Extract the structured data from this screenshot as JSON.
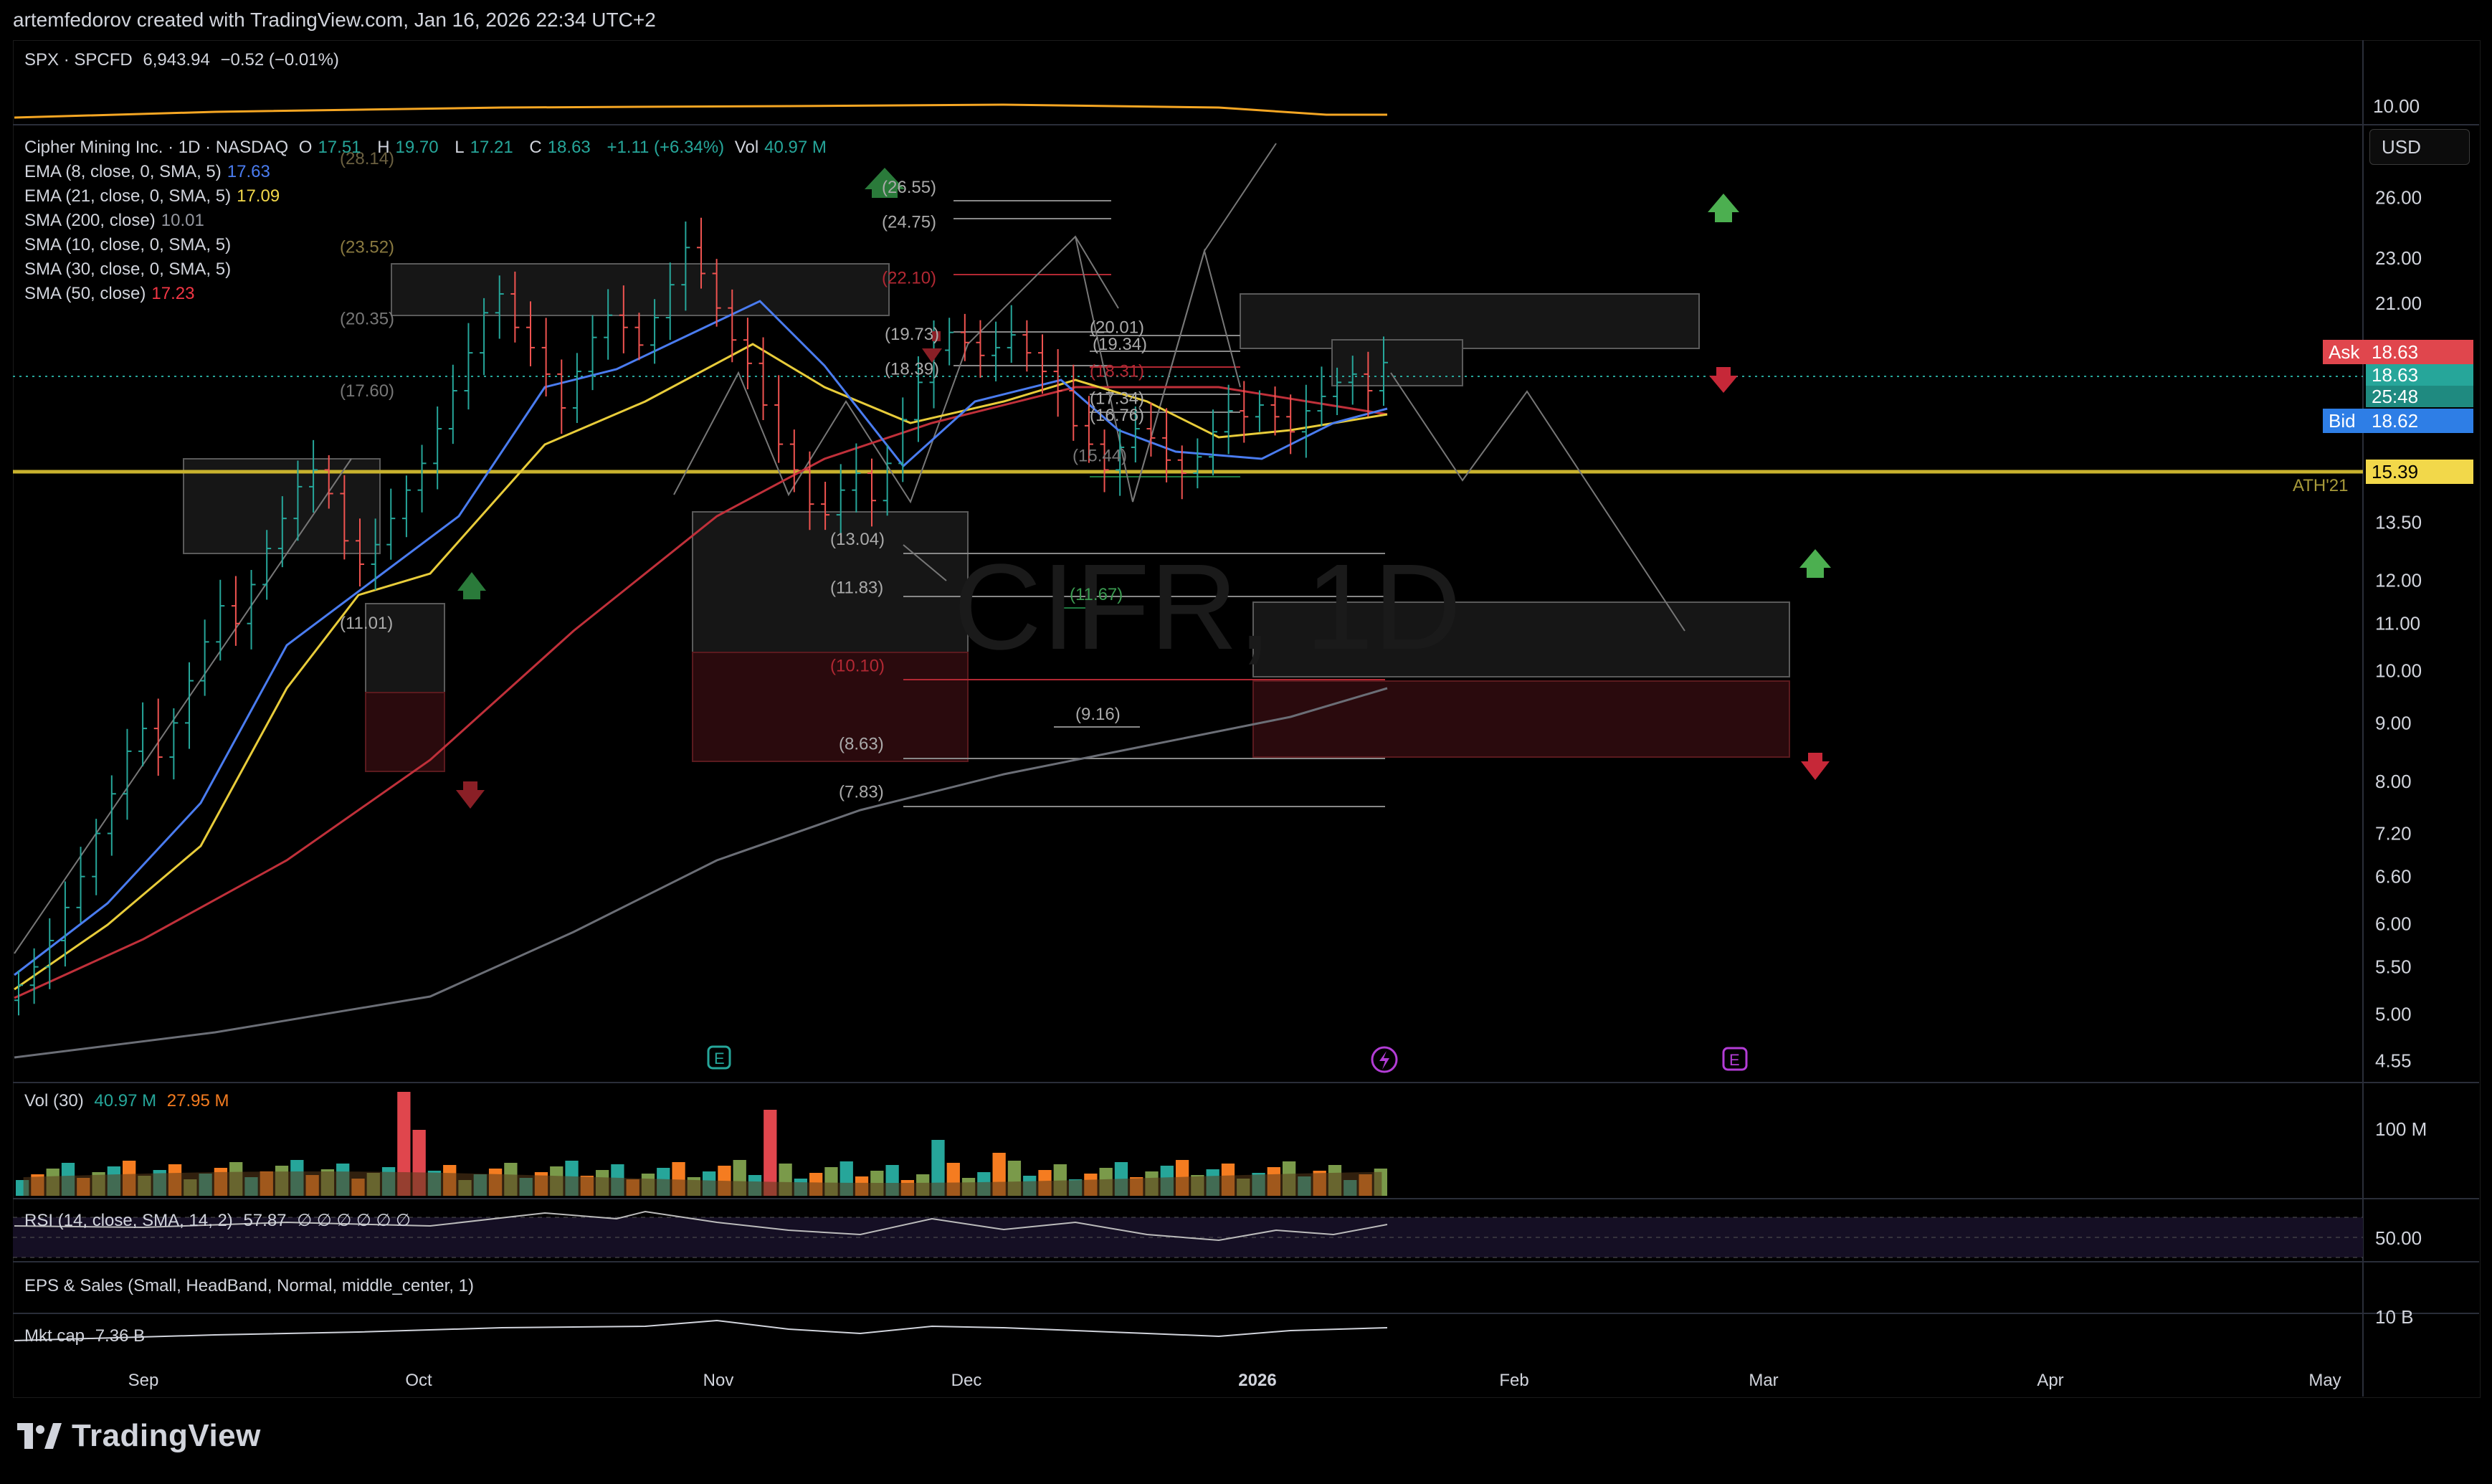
{
  "header": {
    "attribution": "artemfedorov created with TradingView.com, Jan 16, 2026 22:34 UTC+2"
  },
  "compare_pane": {
    "label": "SPX · SPCFD",
    "value": "6,943.94",
    "change": "−0.52 (−0.01%)",
    "axis_label": "10.00"
  },
  "main_legend": {
    "symbol": "Cipher Mining Inc. · 1D · NASDAQ",
    "o_label": "O",
    "o_value": "17.51",
    "h_label": "H",
    "h_value": "19.70",
    "l_label": "L",
    "l_value": "17.21",
    "c_label": "C",
    "c_value": "18.63",
    "change": "+1.11 (+6.34%)",
    "vol_label": "Vol",
    "vol_value": "40.97 M"
  },
  "indicators": [
    {
      "label": "EMA (8, close, 0, SMA, 5)",
      "value": "17.63",
      "color": "#4a7cf0"
    },
    {
      "label": "EMA (21, close, 0, SMA, 5)",
      "value": "17.09",
      "color": "#f2d84a"
    },
    {
      "label": "SMA (200, close)",
      "value": "10.01",
      "color": "#9598a1"
    },
    {
      "label": "SMA (10, close, 0, SMA, 5)",
      "value": "",
      "color": "#d1d4dc"
    },
    {
      "label": "SMA (30, close, 0, SMA, 5)",
      "value": "",
      "color": "#d1d4dc"
    },
    {
      "label": "SMA (50, close)",
      "value": "17.23",
      "color": "#f23645"
    }
  ],
  "watermark": "CIFR, 1D",
  "currency": "USD",
  "price_tags": {
    "ask_label": "Ask",
    "ask_value": "18.63",
    "last_value": "18.63",
    "countdown": "25:48",
    "bid_label": "Bid",
    "bid_value": "18.62",
    "level_value": "15.39",
    "level_name": "ATH'21"
  },
  "chart_data": {
    "type": "candlestick",
    "title": "",
    "y_scale": "log",
    "y_ticks": [
      "26.00",
      "23.00",
      "21.00",
      "15.00",
      "13.50",
      "12.00",
      "11.00",
      "10.00",
      "9.00",
      "8.00",
      "7.20",
      "6.60",
      "6.00",
      "5.50",
      "5.00",
      "4.55"
    ],
    "x_ticks": [
      "Sep",
      "Oct",
      "Nov",
      "Dec",
      "2026",
      "Feb",
      "Mar",
      "Apr",
      "May"
    ],
    "horizontal_level": 15.39,
    "level_labels": [
      "(28.14)",
      "(26.55)",
      "(24.75)",
      "(23.52)",
      "(22.10)",
      "(20.35)",
      "(20.01)",
      "(19.73)",
      "(19.34)",
      "(18.39)",
      "(18.31)",
      "(17.60)",
      "(17.34)",
      "(16.76)",
      "(15.44)",
      "(13.04)",
      "(11.83)",
      "(11.67)",
      "(11.01)",
      "(10.10)",
      "(9.16)",
      "(8.63)",
      "(7.83)"
    ],
    "series_close": [
      5.3,
      5.5,
      5.8,
      6.2,
      6.6,
      7.2,
      7.8,
      8.5,
      8.9,
      8.4,
      9.0,
      9.8,
      10.6,
      11.4,
      11.0,
      11.9,
      12.8,
      13.6,
      14.5,
      15.0,
      14.3,
      13.0,
      12.4,
      12.9,
      13.6,
      14.4,
      15.2,
      16.3,
      17.6,
      19.0,
      20.6,
      21.4,
      20.0,
      19.2,
      18.2,
      17.0,
      18.3,
      19.6,
      20.5,
      20.0,
      19.3,
      20.4,
      21.8,
      23.5,
      22.3,
      20.8,
      19.5,
      18.6,
      17.1,
      15.8,
      15.0,
      14.0,
      13.7,
      14.4,
      14.9,
      14.1,
      15.2,
      16.6,
      17.9,
      19.1,
      19.8,
      19.4,
      18.9,
      19.2,
      19.7,
      19.0,
      18.3,
      17.6,
      16.4,
      15.8,
      15.0,
      15.7,
      16.3,
      16.0,
      15.3,
      14.9,
      15.4,
      16.2,
      16.9,
      16.7,
      17.1,
      16.7,
      16.2,
      16.9,
      17.4,
      17.9,
      18.2,
      17.6,
      18.63
    ],
    "volume_ticks": [
      "100 M"
    ],
    "volume": {
      "label": "Vol (30)",
      "value": "40.97 M",
      "ma": "27.95 M"
    },
    "rsi": {
      "label": "RSI (14, close, SMA, 14, 2)",
      "value": "57.87",
      "extra": "∅ ∅ ∅ ∅ ∅ ∅",
      "axis": "50.00"
    },
    "eps": {
      "label": "EPS & Sales (Small, HeadBand, Normal, middle_center, 1)"
    },
    "mktcap": {
      "label": "Mkt cap",
      "value": "7.36 B",
      "axis": "10 B"
    }
  },
  "brand": "TradingView",
  "colors": {
    "up": "#26a69a",
    "down": "#ef5350",
    "orange": "#f57c20",
    "level": "#c8b22e",
    "arrow_up": "#4caf50",
    "arrow_down": "#c62838"
  }
}
